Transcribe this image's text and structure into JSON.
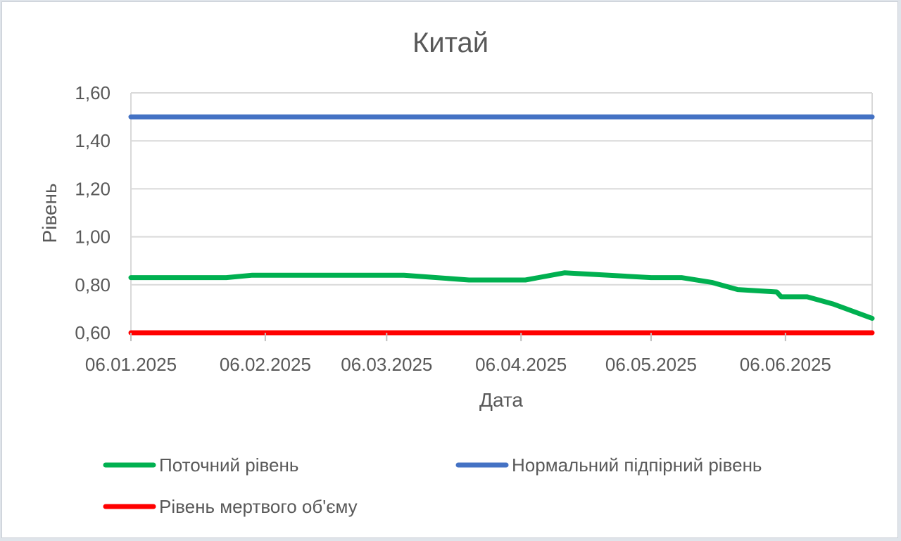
{
  "chart_data": {
    "type": "line",
    "title": "Китай",
    "xlabel": "Дата",
    "ylabel": "Рівень",
    "x_range": [
      "06.01.2025",
      "26.06.2025"
    ],
    "x_ticks": [
      "06.01.2025",
      "06.02.2025",
      "06.03.2025",
      "06.04.2025",
      "06.05.2025",
      "06.06.2025"
    ],
    "ylim": [
      0.6,
      1.6
    ],
    "y_ticks": [
      "0,60",
      "0,80",
      "1,00",
      "1,20",
      "1,40",
      "1,60"
    ],
    "y_tick_values": [
      0.6,
      0.8,
      1.0,
      1.2,
      1.4,
      1.6
    ],
    "grid": true,
    "legend_position": "bottom",
    "series": [
      {
        "name": "Поточний рівень",
        "color": "#00b050",
        "points": [
          {
            "x": "06.01.2025",
            "y": 0.83
          },
          {
            "x": "28.01.2025",
            "y": 0.83
          },
          {
            "x": "03.02.2025",
            "y": 0.84
          },
          {
            "x": "10.03.2025",
            "y": 0.84
          },
          {
            "x": "25.03.2025",
            "y": 0.82
          },
          {
            "x": "07.04.2025",
            "y": 0.82
          },
          {
            "x": "16.04.2025",
            "y": 0.85
          },
          {
            "x": "06.05.2025",
            "y": 0.83
          },
          {
            "x": "13.05.2025",
            "y": 0.83
          },
          {
            "x": "20.05.2025",
            "y": 0.81
          },
          {
            "x": "26.05.2025",
            "y": 0.78
          },
          {
            "x": "04.06.2025",
            "y": 0.77
          },
          {
            "x": "05.06.2025",
            "y": 0.75
          },
          {
            "x": "11.06.2025",
            "y": 0.75
          },
          {
            "x": "17.06.2025",
            "y": 0.72
          },
          {
            "x": "26.06.2025",
            "y": 0.66
          }
        ]
      },
      {
        "name": "Нормальний підпірний рівень",
        "color": "#4472c4",
        "points": [
          {
            "x": "06.01.2025",
            "y": 1.5
          },
          {
            "x": "26.06.2025",
            "y": 1.5
          }
        ]
      },
      {
        "name": "Рівень мертвого об'єму",
        "color": "#ff0000",
        "points": [
          {
            "x": "06.01.2025",
            "y": 0.6
          },
          {
            "x": "26.06.2025",
            "y": 0.6
          }
        ]
      }
    ]
  }
}
